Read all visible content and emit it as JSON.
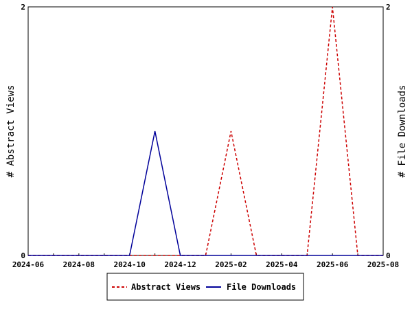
{
  "chart_data": {
    "type": "line",
    "x": [
      "2024-06",
      "2024-07",
      "2024-08",
      "2024-09",
      "2024-10",
      "2024-11",
      "2024-12",
      "2025-01",
      "2025-02",
      "2025-03",
      "2025-04",
      "2025-05",
      "2025-06",
      "2025-07",
      "2025-08"
    ],
    "x_tick_labels": [
      "2024-06",
      "2024-08",
      "2024-10",
      "2024-12",
      "2025-02",
      "2025-04",
      "2025-06",
      "2025-08"
    ],
    "series": [
      {
        "name": "Abstract Views",
        "values": [
          0,
          0,
          0,
          0,
          0,
          0,
          0,
          0,
          1,
          0,
          0,
          0,
          2,
          0,
          0
        ],
        "color": "#cc0000",
        "style": "dashed",
        "axis": "left"
      },
      {
        "name": "File Downloads",
        "values": [
          0,
          0,
          0,
          0,
          0,
          1,
          0,
          0,
          0,
          0,
          0,
          0,
          0,
          0,
          0
        ],
        "color": "#000099",
        "style": "solid",
        "axis": "right"
      }
    ],
    "ylabel": "# Abstract Views",
    "y2label": "# File Downloads",
    "ylim": [
      0,
      2
    ],
    "y2lim": [
      0,
      2
    ],
    "y_ticks": [
      "0",
      "2"
    ],
    "y2_ticks": [
      "0",
      "2"
    ],
    "grid": false,
    "legend": "bottom"
  }
}
